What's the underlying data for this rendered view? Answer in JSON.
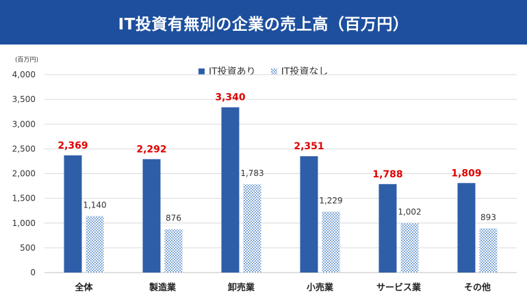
{
  "header": {
    "title": "IT投資有無別の企業の売上高（百万円）"
  },
  "colors": {
    "header_bg": "#1d4f9e",
    "series_with_it": "#2e5ea8",
    "series_without_it_pattern": "#7fa6d6",
    "highlight_label": "#e00000",
    "axis_text": "#333333",
    "grid": "#d9d9d9"
  },
  "chart_data": {
    "type": "bar",
    "title": "IT投資有無別の企業の売上高（百万円）",
    "unit_label": "(百万円)",
    "categories": [
      "全体",
      "製造業",
      "卸売業",
      "小売業",
      "サービス業",
      "その他"
    ],
    "series": [
      {
        "name": "IT投資あり",
        "values": [
          2369,
          2292,
          3340,
          2351,
          1788,
          1809
        ]
      },
      {
        "name": "IT投資なし",
        "values": [
          1140,
          876,
          1783,
          1229,
          1002,
          893
        ]
      }
    ],
    "value_labels": [
      [
        "2,369",
        "2,292",
        "3,340",
        "2,351",
        "1,788",
        "1,809"
      ],
      [
        "1,140",
        "876",
        "1,783",
        "1,229",
        "1,002",
        "893"
      ]
    ],
    "yticks": [
      "0",
      "500",
      "1,000",
      "1,500",
      "2,000",
      "2,500",
      "3,000",
      "3,500",
      "4,000"
    ],
    "ylim": [
      0,
      4000
    ],
    "grid": true,
    "legend_position": "top-center"
  }
}
